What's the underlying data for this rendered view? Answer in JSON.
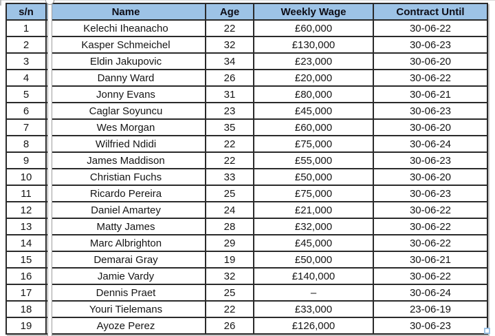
{
  "colors": {
    "header_bg": "#9dc3e6",
    "border": "#2a2a2a",
    "text": "#151515"
  },
  "table": {
    "columns": [
      {
        "key": "sn",
        "label": "s/n"
      },
      {
        "key": "name",
        "label": "Name"
      },
      {
        "key": "age",
        "label": "Age"
      },
      {
        "key": "wage",
        "label": "Weekly Wage"
      },
      {
        "key": "contract",
        "label": "Contract Until"
      }
    ],
    "rows": [
      [
        "1",
        "Kelechi Iheanacho",
        "22",
        "£60,000",
        "30-06-22"
      ],
      [
        "2",
        "Kasper Schmeichel",
        "32",
        "£130,000",
        "30-06-23"
      ],
      [
        "3",
        "Eldin Jakupovic",
        "34",
        "£23,000",
        "30-06-20"
      ],
      [
        "4",
        "Danny Ward",
        "26",
        "£20,000",
        "30-06-22"
      ],
      [
        "5",
        "Jonny Evans",
        "31",
        "£80,000",
        "30-06-21"
      ],
      [
        "6",
        "Caglar Soyuncu",
        "23",
        "£45,000",
        "30-06-23"
      ],
      [
        "7",
        "Wes Morgan",
        "35",
        "£60,000",
        "30-06-20"
      ],
      [
        "8",
        "Wilfried Ndidi",
        "22",
        "£75,000",
        "30-06-24"
      ],
      [
        "9",
        "James Maddison",
        "22",
        "£55,000",
        "30-06-23"
      ],
      [
        "10",
        "Christian Fuchs",
        "33",
        "£50,000",
        "30-06-20"
      ],
      [
        "11",
        "Ricardo Pereira",
        "25",
        "£75,000",
        "30-06-23"
      ],
      [
        "12",
        "Daniel Amartey",
        "24",
        "£21,000",
        "30-06-22"
      ],
      [
        "13",
        "Matty James",
        "28",
        "£32,000",
        "30-06-22"
      ],
      [
        "14",
        "Marc Albrighton",
        "29",
        "£45,000",
        "30-06-22"
      ],
      [
        "15",
        "Demarai Gray",
        "19",
        "£50,000",
        "30-06-21"
      ],
      [
        "16",
        "Jamie Vardy",
        "32",
        "£140,000",
        "30-06-22"
      ],
      [
        "17",
        "Dennis Praet",
        "25",
        "–",
        "30-06-24"
      ],
      [
        "18",
        "Youri Tielemans",
        "22",
        "£33,000",
        "23-06-19"
      ],
      [
        "19",
        "Ayoze Perez",
        "26",
        "£126,000",
        "30-06-23"
      ]
    ]
  }
}
